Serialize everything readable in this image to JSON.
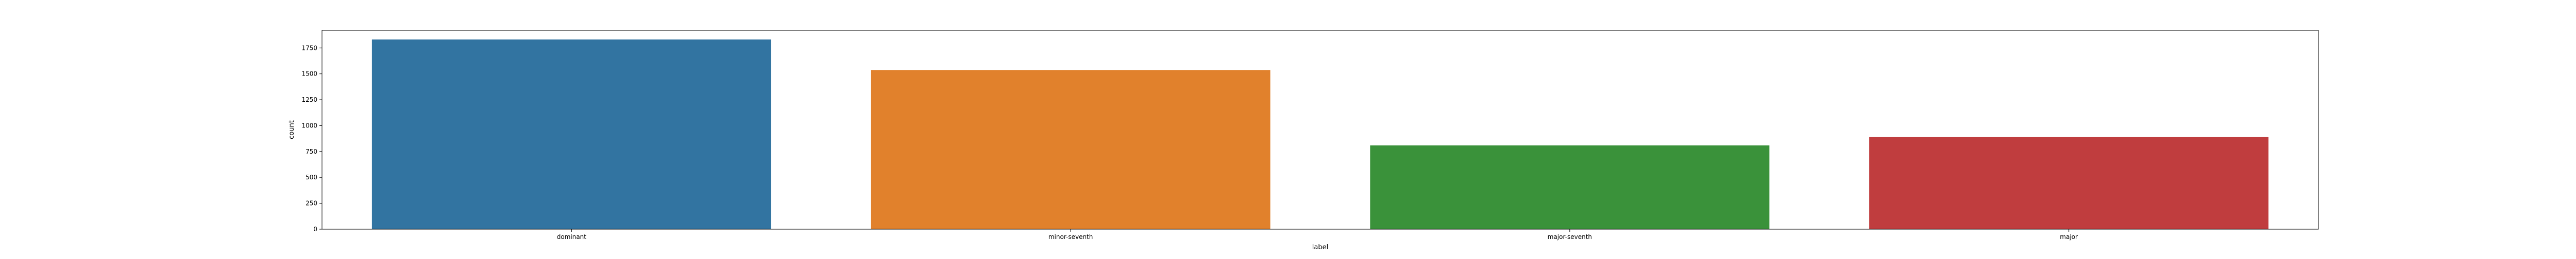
{
  "chart_data": {
    "type": "bar",
    "title": "",
    "xlabel": "label",
    "ylabel": "count",
    "categories": [
      "dominant",
      "minor-seventh",
      "major-seventh",
      "major"
    ],
    "values": [
      1832,
      1537,
      809,
      889
    ],
    "colors": [
      "#3274a1",
      "#e1812c",
      "#3a923a",
      "#c03d3e"
    ],
    "ylim": [
      0,
      1920
    ],
    "yticks": [
      0,
      250,
      500,
      750,
      1000,
      1250,
      1500,
      1750
    ],
    "grid": false,
    "legend": "none"
  }
}
